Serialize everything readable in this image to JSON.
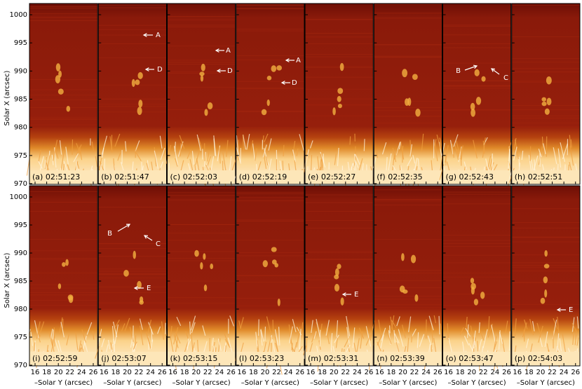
{
  "y_axis_label": "Solar X (arcsec)",
  "x_axis_label": "–Solar Y (arcsec)",
  "y_ticks": [
    970,
    975,
    980,
    985,
    990,
    995,
    1000
  ],
  "x_ticks": [
    16,
    18,
    20,
    22,
    24,
    26
  ],
  "panels": [
    {
      "label": "(a) 02:51:23",
      "annotations": []
    },
    {
      "label": "(b) 02:51:47",
      "annotations": [
        "A",
        "D"
      ]
    },
    {
      "label": "(c) 02:52:03",
      "annotations": [
        "A",
        "D"
      ]
    },
    {
      "label": "(d) 02:52:19",
      "annotations": [
        "A",
        "D"
      ]
    },
    {
      "label": "(e) 02:52:27",
      "annotations": []
    },
    {
      "label": "(f) 02:52:35",
      "annotations": []
    },
    {
      "label": "(g) 02:52:43",
      "annotations": [
        "B",
        "C"
      ]
    },
    {
      "label": "(h) 02:52:51",
      "annotations": []
    },
    {
      "label": "(i) 02:52:59",
      "annotations": []
    },
    {
      "label": "(j) 02:53:07",
      "annotations": [
        "B",
        "C",
        "E"
      ]
    },
    {
      "label": "(k) 02:53:15",
      "annotations": []
    },
    {
      "label": "(l) 02:53:23",
      "annotations": []
    },
    {
      "label": "(m) 02:53:31",
      "annotations": [
        "E"
      ]
    },
    {
      "label": "(n) 02:53:39",
      "annotations": []
    },
    {
      "label": "(o) 02:53:47",
      "annotations": []
    },
    {
      "label": "(p) 02:54:03",
      "annotations": [
        "E"
      ]
    }
  ]
}
